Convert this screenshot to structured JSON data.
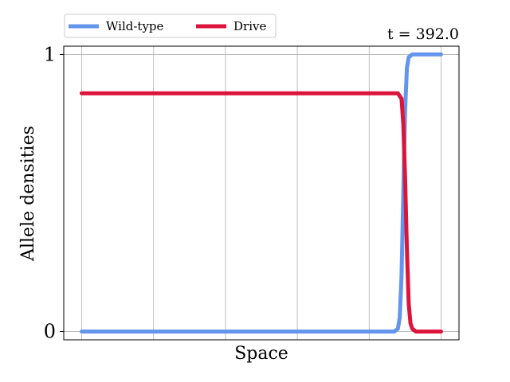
{
  "chart_data": {
    "type": "line",
    "title": "",
    "time_label": "t = 392.0",
    "xlabel": "Space",
    "ylabel": "Allele densities",
    "xlim": [
      -0.05,
      1.05
    ],
    "ylim": [
      -0.03,
      1.03
    ],
    "x_gridlines": [
      0,
      0.2,
      0.4,
      0.6,
      0.8,
      1.0
    ],
    "y_ticks": [
      0,
      1
    ],
    "y_tick_labels": [
      "0",
      "1"
    ],
    "grid": true,
    "legend_placement": "above-left",
    "series": [
      {
        "name": "Wild-type",
        "color": "#6495ED",
        "x": [
          0,
          0.87,
          0.88,
          0.885,
          0.89,
          0.895,
          0.9,
          0.905,
          0.91,
          0.92,
          0.93,
          0.95,
          1.0
        ],
        "y": [
          0,
          0,
          0.01,
          0.05,
          0.2,
          0.5,
          0.8,
          0.95,
          0.99,
          1.0,
          1.0,
          1.0,
          1.0
        ]
      },
      {
        "name": "Drive",
        "color": "#DC143C",
        "x": [
          0,
          0.88,
          0.89,
          0.895,
          0.9,
          0.905,
          0.91,
          0.915,
          0.92,
          0.93,
          0.95,
          1.0
        ],
        "y": [
          0.86,
          0.86,
          0.84,
          0.75,
          0.55,
          0.3,
          0.1,
          0.03,
          0.01,
          0,
          0,
          0
        ]
      }
    ]
  }
}
